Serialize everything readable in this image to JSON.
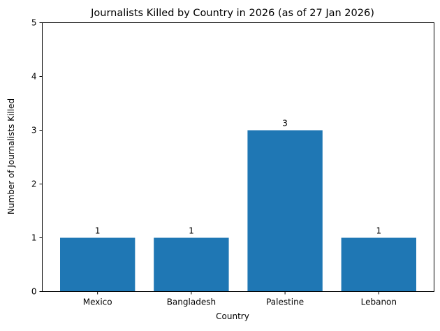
{
  "chart_data": {
    "type": "bar",
    "title": "Journalists Killed by Country in 2026 (as of 27 Jan 2026)",
    "xlabel": "Country",
    "ylabel": "Number of Journalists Killed",
    "categories": [
      "Mexico",
      "Bangladesh",
      "Palestine",
      "Lebanon"
    ],
    "values": [
      1,
      1,
      3,
      1
    ],
    "data_labels": [
      "1",
      "1",
      "3",
      "1"
    ],
    "ylim": [
      0,
      5
    ],
    "yticks": [
      0,
      1,
      2,
      3,
      4,
      5
    ],
    "ytick_labels": [
      "0",
      "1",
      "2",
      "3",
      "4",
      "5"
    ],
    "grid": false,
    "bar_color": "#1f77b4"
  }
}
